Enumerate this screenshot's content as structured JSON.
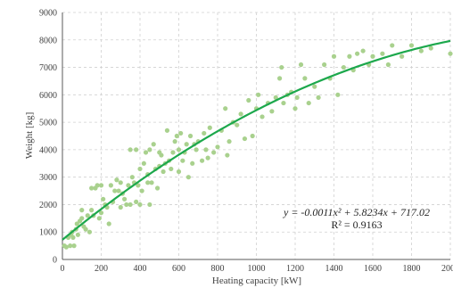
{
  "chart_data": {
    "type": "scatter",
    "title": "",
    "xlabel": "Heating capacity [kW]",
    "ylabel": "Weight [kg]",
    "xlim": [
      0,
      2000
    ],
    "ylim": [
      0,
      9000
    ],
    "x_ticks": [
      0,
      200,
      400,
      600,
      800,
      1000,
      1200,
      1400,
      1600,
      1800,
      2000
    ],
    "y_ticks": [
      0,
      1000,
      2000,
      3000,
      4000,
      5000,
      6000,
      7000,
      8000,
      9000
    ],
    "grid": "dashed",
    "colors": {
      "points": "#a9d18e",
      "trendline": "#1ca84c",
      "axis": "#595959",
      "grid": "#d0d0d0"
    },
    "trendline": {
      "type": "polynomial",
      "coefficients": [
        -0.0011,
        5.8234,
        717.02
      ],
      "equation": "y = -0.0011x² + 5.8234x + 717.02",
      "r_squared": "R² = 0.9163"
    },
    "points": [
      [
        10,
        500
      ],
      [
        20,
        450
      ],
      [
        30,
        800
      ],
      [
        40,
        500
      ],
      [
        45,
        900
      ],
      [
        50,
        1000
      ],
      [
        55,
        800
      ],
      [
        60,
        500
      ],
      [
        70,
        1100
      ],
      [
        75,
        1300
      ],
      [
        80,
        900
      ],
      [
        90,
        1400
      ],
      [
        100,
        1500
      ],
      [
        100,
        1800
      ],
      [
        110,
        1200
      ],
      [
        120,
        1100
      ],
      [
        130,
        1600
      ],
      [
        140,
        1000
      ],
      [
        150,
        1800
      ],
      [
        150,
        2600
      ],
      [
        160,
        1600
      ],
      [
        170,
        2600
      ],
      [
        180,
        2700
      ],
      [
        190,
        1500
      ],
      [
        200,
        1700
      ],
      [
        200,
        2700
      ],
      [
        210,
        2200
      ],
      [
        220,
        2000
      ],
      [
        230,
        1900
      ],
      [
        240,
        1300
      ],
      [
        250,
        2700
      ],
      [
        260,
        2100
      ],
      [
        270,
        2500
      ],
      [
        280,
        2900
      ],
      [
        290,
        2500
      ],
      [
        300,
        1900
      ],
      [
        300,
        2800
      ],
      [
        310,
        2400
      ],
      [
        320,
        2200
      ],
      [
        330,
        2000
      ],
      [
        340,
        2700
      ],
      [
        350,
        4000
      ],
      [
        350,
        2000
      ],
      [
        360,
        3000
      ],
      [
        370,
        2800
      ],
      [
        380,
        2100
      ],
      [
        380,
        4000
      ],
      [
        390,
        2700
      ],
      [
        400,
        3300
      ],
      [
        400,
        2000
      ],
      [
        410,
        2500
      ],
      [
        420,
        3500
      ],
      [
        430,
        3900
      ],
      [
        440,
        2800
      ],
      [
        440,
        3100
      ],
      [
        450,
        2000
      ],
      [
        450,
        4000
      ],
      [
        460,
        2800
      ],
      [
        470,
        4200
      ],
      [
        480,
        3300
      ],
      [
        490,
        2600
      ],
      [
        500,
        3400
      ],
      [
        500,
        3900
      ],
      [
        510,
        3800
      ],
      [
        520,
        3200
      ],
      [
        530,
        3500
      ],
      [
        540,
        4700
      ],
      [
        550,
        3600
      ],
      [
        560,
        3300
      ],
      [
        570,
        3900
      ],
      [
        580,
        4300
      ],
      [
        590,
        4500
      ],
      [
        600,
        3200
      ],
      [
        600,
        4000
      ],
      [
        610,
        4600
      ],
      [
        620,
        3600
      ],
      [
        630,
        3900
      ],
      [
        640,
        4200
      ],
      [
        650,
        3000
      ],
      [
        660,
        4500
      ],
      [
        670,
        3500
      ],
      [
        680,
        4200
      ],
      [
        690,
        4000
      ],
      [
        700,
        4300
      ],
      [
        720,
        3600
      ],
      [
        730,
        4600
      ],
      [
        740,
        4000
      ],
      [
        750,
        3700
      ],
      [
        760,
        4800
      ],
      [
        780,
        3900
      ],
      [
        800,
        4100
      ],
      [
        820,
        4700
      ],
      [
        840,
        5500
      ],
      [
        850,
        3800
      ],
      [
        860,
        4300
      ],
      [
        880,
        5000
      ],
      [
        900,
        4900
      ],
      [
        920,
        5300
      ],
      [
        940,
        4400
      ],
      [
        960,
        5800
      ],
      [
        980,
        4500
      ],
      [
        1000,
        5500
      ],
      [
        1010,
        6000
      ],
      [
        1030,
        5200
      ],
      [
        1060,
        5700
      ],
      [
        1080,
        5400
      ],
      [
        1100,
        5900
      ],
      [
        1120,
        6600
      ],
      [
        1130,
        7000
      ],
      [
        1140,
        5700
      ],
      [
        1160,
        6000
      ],
      [
        1180,
        6100
      ],
      [
        1200,
        5500
      ],
      [
        1210,
        5900
      ],
      [
        1230,
        7100
      ],
      [
        1250,
        6600
      ],
      [
        1270,
        5700
      ],
      [
        1300,
        6300
      ],
      [
        1320,
        5900
      ],
      [
        1350,
        7100
      ],
      [
        1380,
        6600
      ],
      [
        1400,
        7400
      ],
      [
        1420,
        6000
      ],
      [
        1450,
        7000
      ],
      [
        1480,
        7400
      ],
      [
        1500,
        6900
      ],
      [
        1520,
        7500
      ],
      [
        1550,
        7600
      ],
      [
        1580,
        7100
      ],
      [
        1600,
        7400
      ],
      [
        1650,
        7500
      ],
      [
        1680,
        7100
      ],
      [
        1700,
        7800
      ],
      [
        1750,
        7400
      ],
      [
        1800,
        7800
      ],
      [
        1850,
        7600
      ],
      [
        1900,
        7700
      ],
      [
        2000,
        7500
      ]
    ]
  }
}
